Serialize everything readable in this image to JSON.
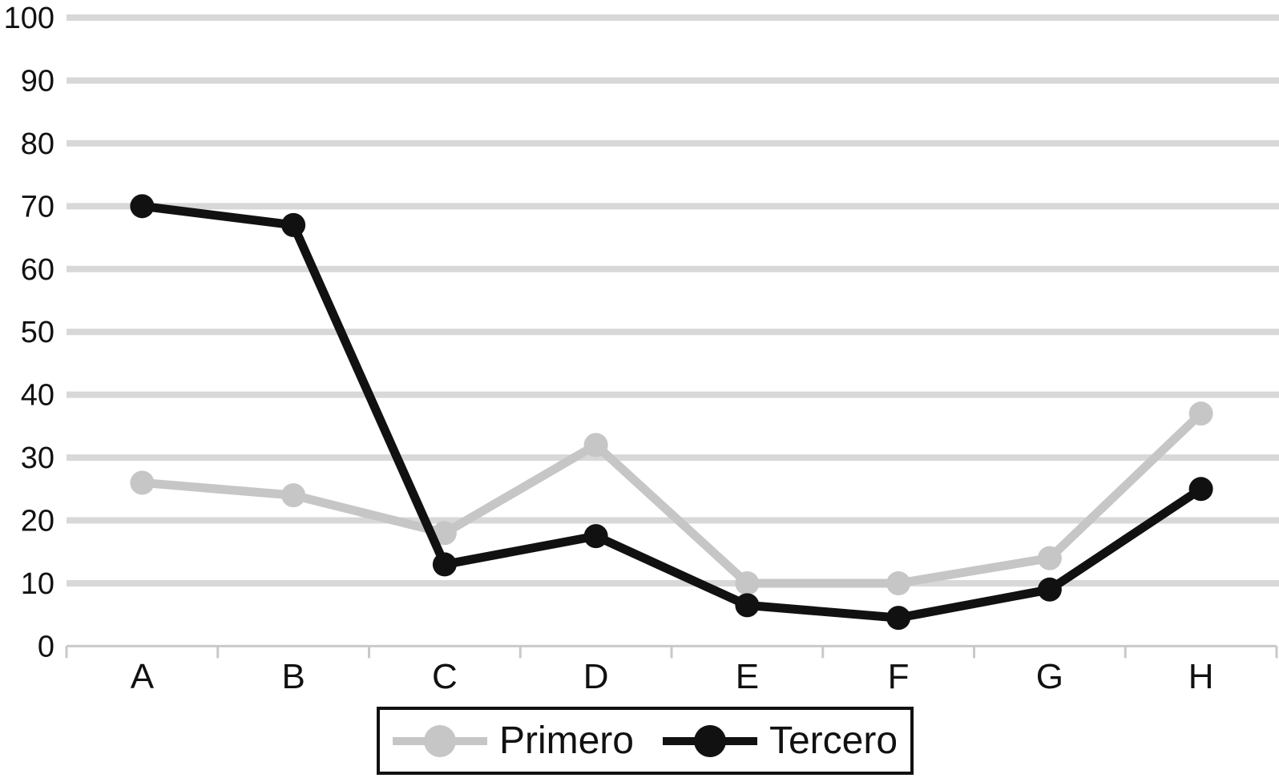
{
  "chart_data": {
    "type": "line",
    "title": "",
    "xlabel": "",
    "ylabel": "",
    "categories": [
      "A",
      "B",
      "C",
      "D",
      "E",
      "F",
      "G",
      "H"
    ],
    "series": [
      {
        "name": "Primero",
        "color": "#c6c6c6",
        "values": [
          26,
          24,
          18,
          32,
          10,
          10,
          14,
          37
        ]
      },
      {
        "name": "Tercero",
        "color": "#111111",
        "values": [
          70,
          67,
          13,
          17.5,
          6.5,
          4.5,
          9,
          25
        ]
      }
    ],
    "ylim": [
      0,
      100
    ],
    "yticks": [
      0,
      10,
      20,
      30,
      40,
      50,
      60,
      70,
      80,
      90,
      100
    ],
    "grid": true,
    "gridline_color": "#d8d8d8",
    "axis_line_color": "#c9c9c9",
    "text_color": "#111111",
    "background_color": "#ffffff",
    "legend_position": "bottom-center",
    "marker": "circle"
  },
  "legend": {
    "items": [
      {
        "label": "Primero",
        "color": "#c6c6c6"
      },
      {
        "label": "Tercero",
        "color": "#111111"
      }
    ]
  }
}
